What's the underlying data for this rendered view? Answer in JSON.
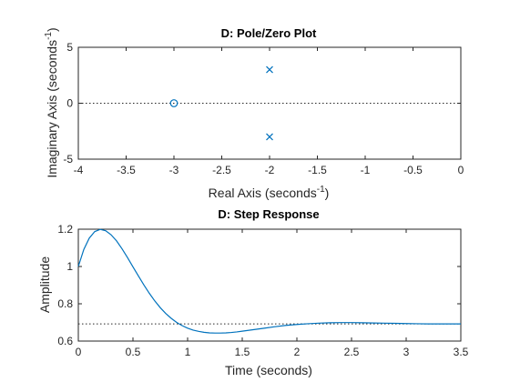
{
  "chart_data": [
    {
      "type": "scatter",
      "title": "D: Pole/Zero Plot",
      "xlabel": "Real Axis (seconds",
      "xlabel_sup": "-1",
      "xlabel_close": ")",
      "ylabel": "Imaginary Axis (seconds",
      "ylabel_sup": "-1",
      "ylabel_close": ")",
      "xlim": [
        -4,
        0
      ],
      "ylim": [
        -5,
        5
      ],
      "xticks": [
        -4,
        -3.5,
        -3,
        -2.5,
        -2,
        -1.5,
        -1,
        -0.5,
        0
      ],
      "xtick_labels": [
        "-4",
        "-3.5",
        "-3",
        "-2.5",
        "-2",
        "-1.5",
        "-1",
        "-0.5",
        "0"
      ],
      "yticks": [
        -5,
        0,
        5
      ],
      "ytick_labels": [
        "-5",
        "0",
        "5"
      ],
      "reference_line_y": 0,
      "grid": false,
      "color": "#0072BD",
      "series": [
        {
          "marker": "x",
          "points": [
            [
              -2,
              3
            ],
            [
              -2,
              -3
            ]
          ]
        },
        {
          "marker": "o",
          "points": [
            [
              -3,
              0
            ]
          ]
        }
      ]
    },
    {
      "type": "line",
      "title": "D: Step Response",
      "xlabel": "Time (seconds)",
      "ylabel": "Amplitude",
      "xlim": [
        0,
        3.5
      ],
      "ylim": [
        0.6,
        1.2
      ],
      "xticks": [
        0,
        0.5,
        1,
        1.5,
        2,
        2.5,
        3,
        3.5
      ],
      "xtick_labels": [
        "0",
        "0.5",
        "1",
        "1.5",
        "2",
        "2.5",
        "3",
        "3.5"
      ],
      "yticks": [
        0.6,
        0.8,
        1,
        1.2
      ],
      "ytick_labels": [
        "0.6",
        "0.8",
        "1",
        "1.2"
      ],
      "reference_line_y": 0.692,
      "grid": false,
      "color": "#0072BD",
      "x": [
        0,
        0.05,
        0.1,
        0.15,
        0.2,
        0.25,
        0.3,
        0.35,
        0.4,
        0.45,
        0.5,
        0.55,
        0.6,
        0.65,
        0.7,
        0.75,
        0.8,
        0.85,
        0.9,
        0.95,
        1.0,
        1.05,
        1.1,
        1.15,
        1.2,
        1.25,
        1.3,
        1.35,
        1.4,
        1.45,
        1.5,
        1.6,
        1.7,
        1.8,
        1.9,
        2.0,
        2.1,
        2.2,
        2.3,
        2.4,
        2.5,
        2.6,
        2.7,
        2.8,
        2.9,
        3.0,
        3.1,
        3.2,
        3.3,
        3.4,
        3.5
      ],
      "values": [
        1.0,
        1.091,
        1.152,
        1.187,
        1.199,
        1.192,
        1.17,
        1.137,
        1.095,
        1.048,
        0.998,
        0.949,
        0.901,
        0.856,
        0.815,
        0.779,
        0.748,
        0.722,
        0.7,
        0.683,
        0.669,
        0.659,
        0.652,
        0.647,
        0.644,
        0.643,
        0.643,
        0.644,
        0.646,
        0.649,
        0.653,
        0.661,
        0.669,
        0.677,
        0.684,
        0.689,
        0.693,
        0.696,
        0.698,
        0.699,
        0.699,
        0.698,
        0.697,
        0.696,
        0.695,
        0.694,
        0.693,
        0.692,
        0.692,
        0.692,
        0.692
      ]
    }
  ]
}
